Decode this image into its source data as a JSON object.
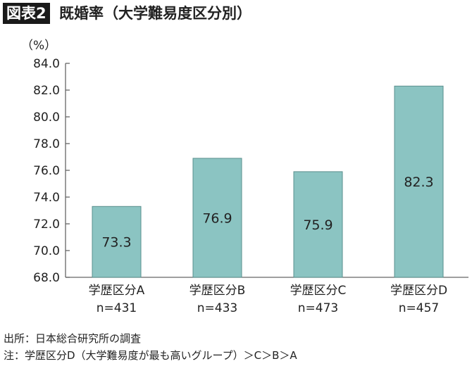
{
  "header": {
    "badge": "図表2",
    "title": "既婚率（大学難易度区分別）"
  },
  "chart_data": {
    "type": "bar",
    "ylabel": "（%）",
    "ylim": [
      68.0,
      84.0
    ],
    "yticks": [
      "68.0",
      "70.0",
      "72.0",
      "74.0",
      "76.0",
      "78.0",
      "80.0",
      "82.0",
      "84.0"
    ],
    "categories": [
      "学歴区分A",
      "学歴区分B",
      "学歴区分C",
      "学歴区分D"
    ],
    "sample_sizes": [
      "n=431",
      "n=433",
      "n=473",
      "n=457"
    ],
    "values": [
      73.3,
      76.9,
      75.9,
      82.3
    ],
    "data_labels": [
      "73.3",
      "76.9",
      "75.9",
      "82.3"
    ],
    "bar_color": "#8bc4c2",
    "bar_border": "#5a8f8d",
    "grid": false
  },
  "footer": {
    "source": "出所：日本総合研究所の調査",
    "note": "注：学歴区分D（大学難易度が最も高いグループ）＞C＞B＞A"
  }
}
